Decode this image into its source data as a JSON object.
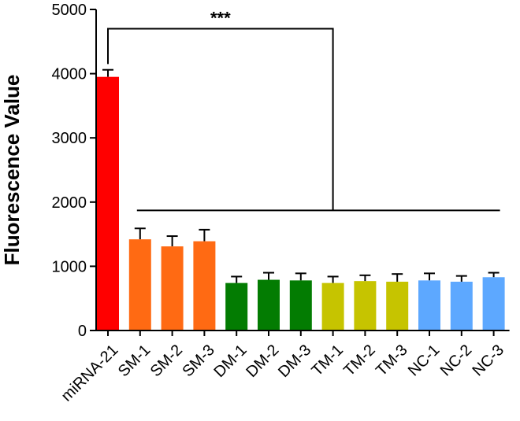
{
  "chart_data": {
    "type": "bar",
    "title": "",
    "xlabel": "",
    "ylabel": "Fluorescence Value",
    "ylim": [
      0,
      5000
    ],
    "yticks": [
      0,
      1000,
      2000,
      3000,
      4000,
      5000
    ],
    "grid": false,
    "categories": [
      "miRNA-21",
      "SM-1",
      "SM-2",
      "SM-3",
      "DM-1",
      "DM-2",
      "DM-3",
      "TM-1",
      "TM-2",
      "TM-3",
      "NC-1",
      "NC-2",
      "NC-3"
    ],
    "values": [
      3950,
      1420,
      1310,
      1390,
      740,
      790,
      780,
      740,
      770,
      760,
      780,
      760,
      830
    ],
    "errors": [
      110,
      170,
      160,
      180,
      100,
      110,
      110,
      100,
      90,
      120,
      110,
      90,
      70
    ],
    "colors": [
      "#ff0000",
      "#ff6a13",
      "#ff6a13",
      "#ff6a13",
      "#037c02",
      "#037c02",
      "#037c02",
      "#c6c400",
      "#c6c400",
      "#c6c400",
      "#5da8ff",
      "#5da8ff",
      "#5da8ff"
    ],
    "significance": {
      "label": "***",
      "bracket_top_y": 4700,
      "group_line_y": 1870
    }
  }
}
